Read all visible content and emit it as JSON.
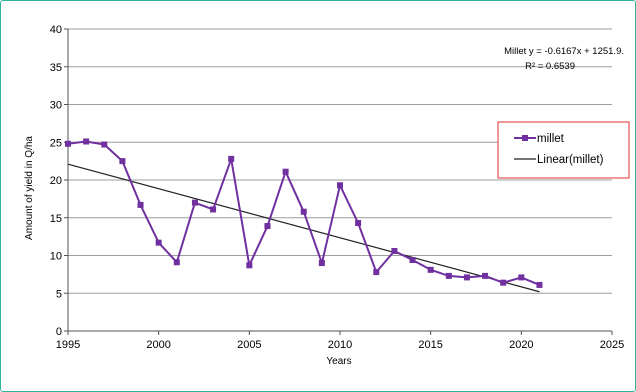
{
  "chart_data": {
    "type": "line",
    "xlabel": "Years",
    "ylabel": "Amount of yield in Q/ha",
    "xlim": [
      1995,
      2025
    ],
    "ylim": [
      0,
      40
    ],
    "xticks": [
      "1995",
      "2000",
      "2005",
      "2010",
      "2015",
      "2020",
      "2025"
    ],
    "yticks": [
      "0",
      "5",
      "10",
      "15",
      "20",
      "25",
      "30",
      "35",
      "40"
    ],
    "grid": "horizontal",
    "legend_position": "right",
    "series": [
      {
        "name": "millet",
        "color": "#7030a0",
        "marker": "square",
        "x": [
          1995,
          1996,
          1997,
          1998,
          1999,
          2000,
          2001,
          2002,
          2003,
          2004,
          2005,
          2006,
          2007,
          2008,
          2009,
          2010,
          2011,
          2012,
          2013,
          2014,
          2015,
          2016,
          2017,
          2018,
          2019,
          2020,
          2021
        ],
        "y": [
          24.8,
          25.1,
          24.7,
          22.5,
          16.7,
          11.7,
          9.1,
          17.0,
          16.1,
          22.8,
          8.7,
          13.9,
          21.1,
          15.8,
          9.0,
          19.3,
          14.3,
          7.8,
          10.6,
          9.4,
          8.1,
          7.3,
          7.1,
          7.3,
          6.4,
          7.1,
          6.1
        ]
      },
      {
        "name": "Linear(millet)",
        "color": "#222222",
        "type": "trendline",
        "x": [
          1995,
          2021
        ],
        "y": [
          22.1,
          5.2
        ]
      }
    ],
    "annotations": {
      "equation": "Millet y = -0.6167x + 1251.9.",
      "r2": "R² = 0.6539"
    }
  },
  "legend": {
    "item1": "millet",
    "item2": "Linear(millet)",
    "border_color": "#e03030"
  },
  "colors": {
    "frame": "#2fb89a",
    "grid": "#9e9e9e",
    "series": "#7030a0"
  }
}
